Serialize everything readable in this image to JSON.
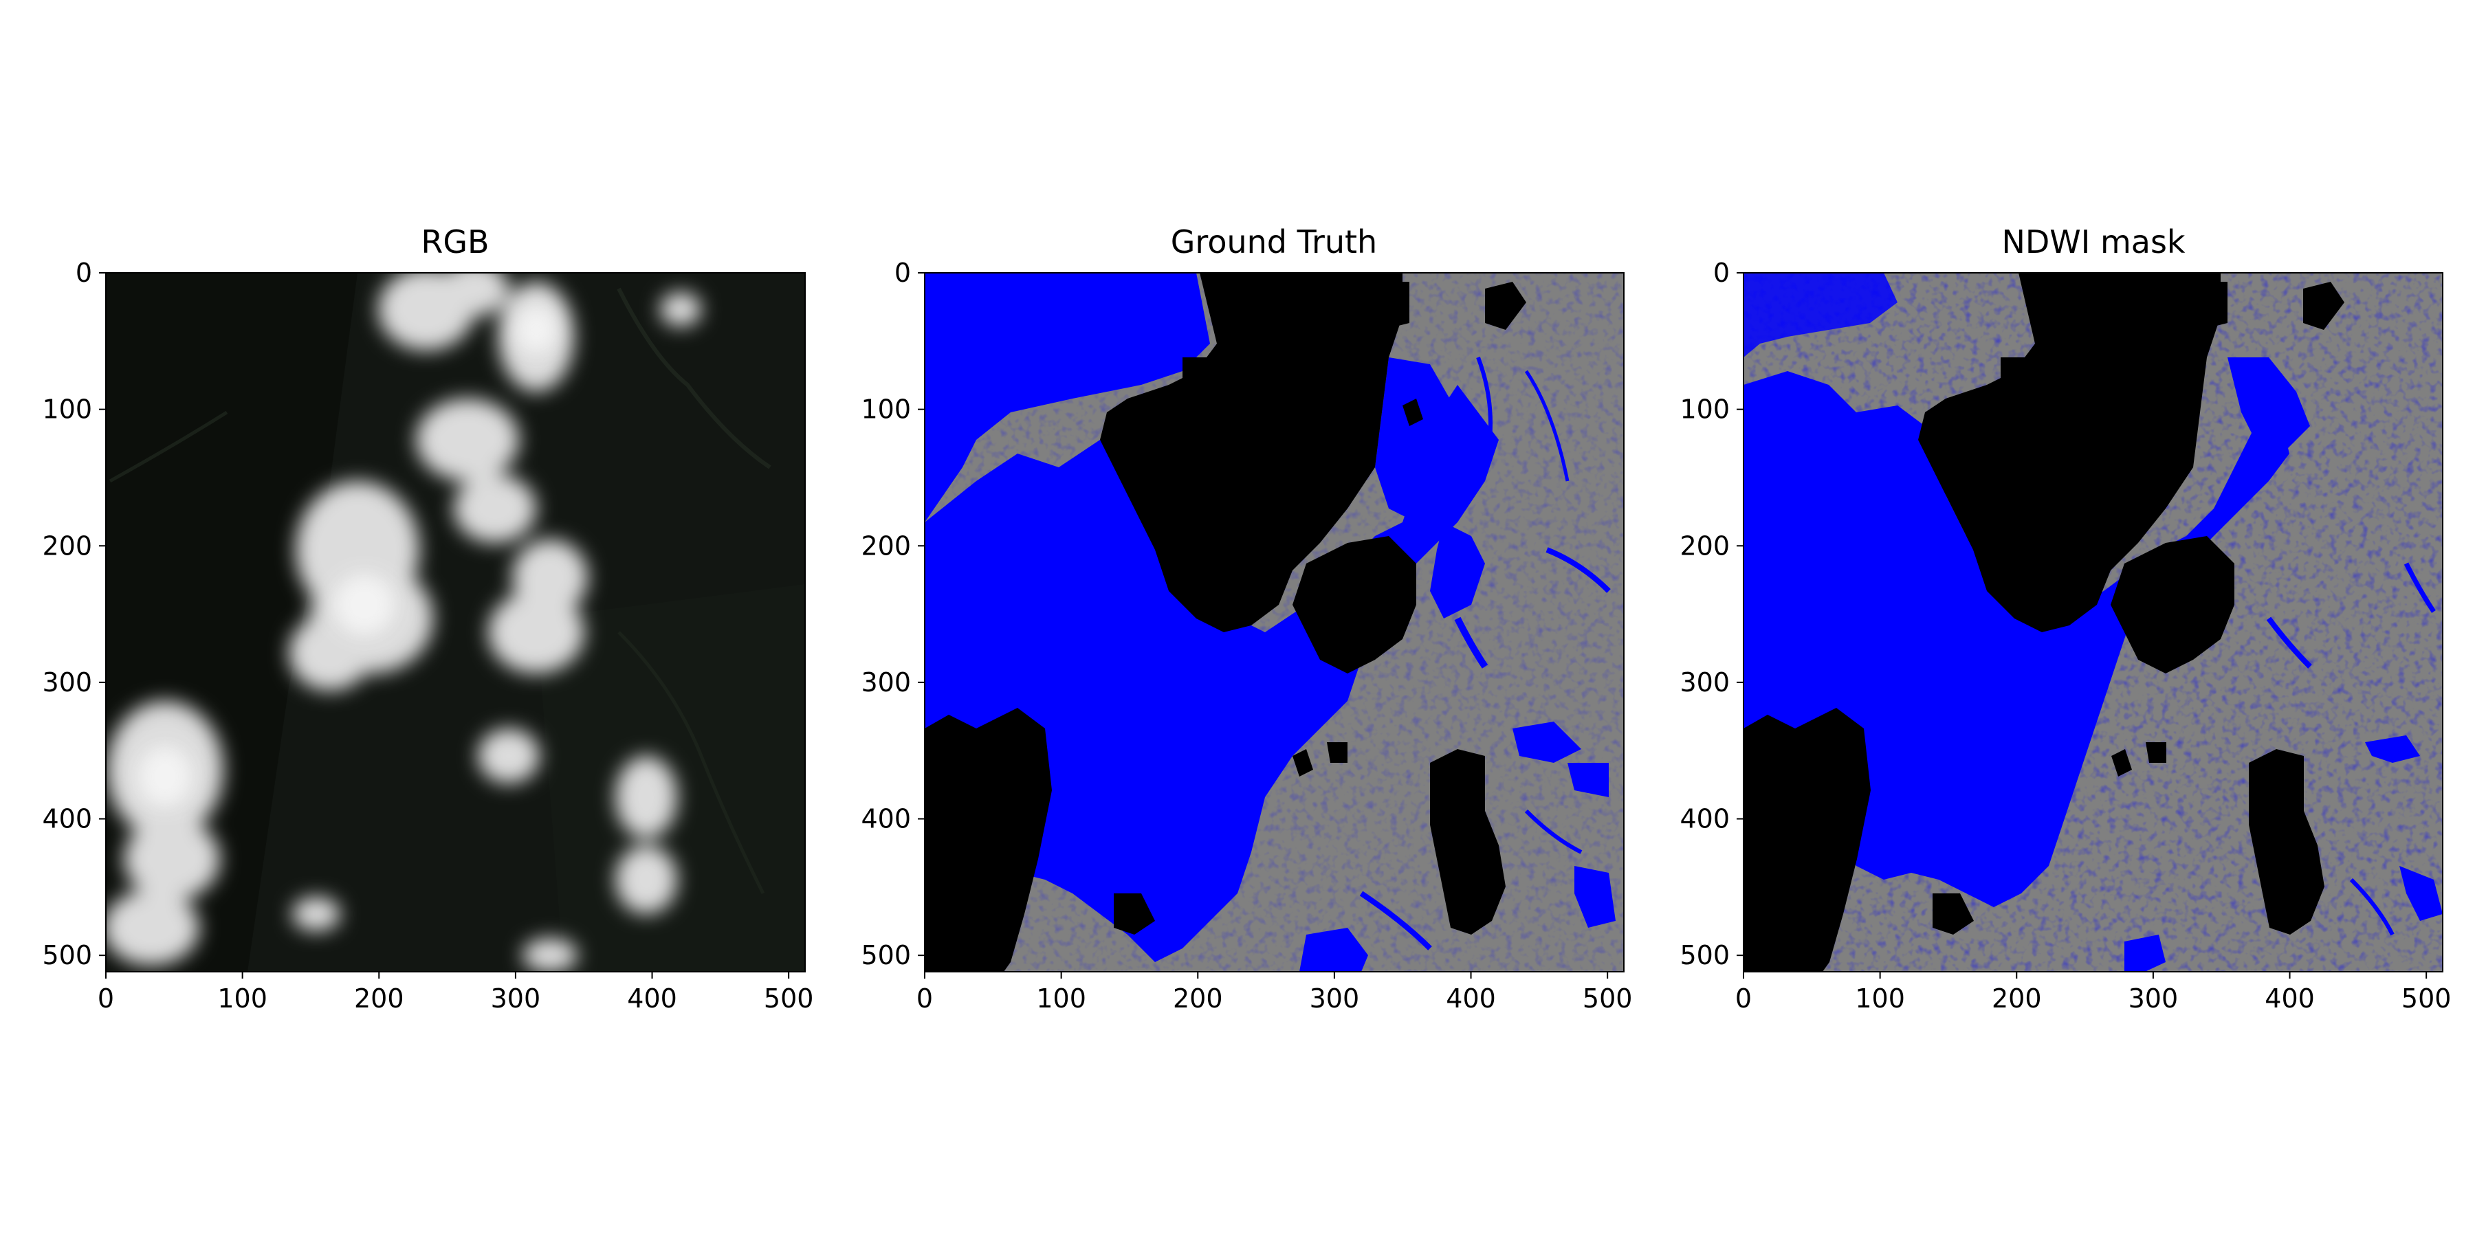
{
  "figure": {
    "background": "#ffffff",
    "panels": [
      {
        "id": "rgb",
        "title": "RGB",
        "kind": "satellite-rgb"
      },
      {
        "id": "gt",
        "title": "Ground Truth",
        "kind": "mask"
      },
      {
        "id": "ndwi",
        "title": "NDWI mask",
        "kind": "mask"
      }
    ],
    "axes": {
      "xlim": [
        0,
        512
      ],
      "ylim": [
        512,
        0
      ],
      "x_ticks": [
        0,
        100,
        200,
        300,
        400,
        500
      ],
      "y_ticks": [
        0,
        100,
        200,
        300,
        400,
        500
      ],
      "x_tick_labels": [
        "0",
        "100",
        "200",
        "300",
        "400",
        "500"
      ],
      "y_tick_labels": [
        "0",
        "100",
        "200",
        "300",
        "400",
        "500"
      ]
    },
    "mask_colors": {
      "water": "#0000ff",
      "land": "#808080",
      "cloud": "#000000"
    },
    "rgb_colors": {
      "background": "#101410",
      "cloud": "#e6e6e6"
    }
  }
}
